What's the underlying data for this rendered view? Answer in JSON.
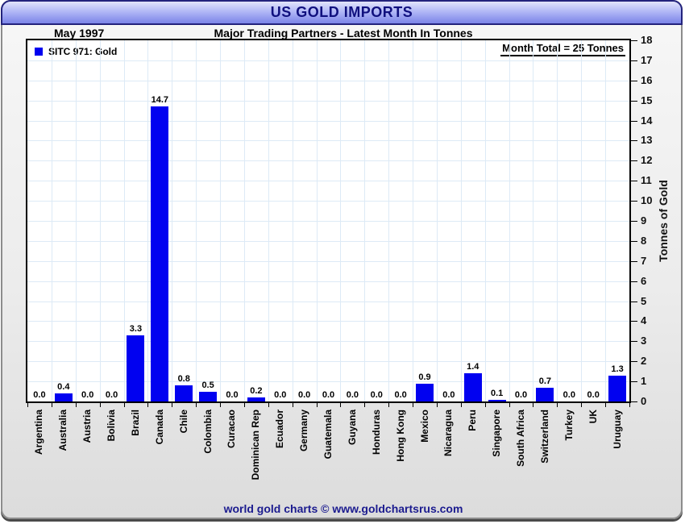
{
  "header": {
    "title": "US GOLD IMPORTS"
  },
  "subheader": {
    "date": "May 1997",
    "subtitle": "Major Trading Partners - Latest Month In Tonnes"
  },
  "legend": {
    "label": "SITC 971: Gold"
  },
  "annotation": {
    "month_total": "Month Total = 25 Tonnes"
  },
  "footer": {
    "credit": "world gold charts © www.goldchartsrus.com"
  },
  "colors": {
    "bar": "#0101f0",
    "grid": "#ddeaf6",
    "banner_top": "#e2e4fc",
    "banner_bottom": "#7b84e8",
    "title_text": "#10107e",
    "footer_text": "#1b1b8f"
  },
  "chart_data": {
    "type": "bar",
    "title": "US GOLD IMPORTS",
    "subtitle": "Major Trading Partners - Latest Month In Tonnes",
    "date_label": "May 1997",
    "legend_entries": [
      "SITC 971: Gold"
    ],
    "annotation": "Month Total = 25 Tonnes",
    "categories": [
      "Argentina",
      "Australia",
      "Austria",
      "Bolivia",
      "Brazil",
      "Canada",
      "Chile",
      "Colombia",
      "Curacao",
      "Dominican Rep",
      "Ecuador",
      "Germany",
      "Guatemala",
      "Guyana",
      "Honduras",
      "Hong Kong",
      "Mexico",
      "Nicaragua",
      "Peru",
      "Singapore",
      "South Africa",
      "Switzerland",
      "Turkey",
      "UK",
      "Uruguay"
    ],
    "values": [
      0.0,
      0.4,
      0.0,
      0.0,
      3.3,
      14.7,
      0.8,
      0.5,
      0.0,
      0.2,
      0.0,
      0.0,
      0.0,
      0.0,
      0.0,
      0.0,
      0.9,
      0.0,
      1.4,
      0.1,
      0.0,
      0.7,
      0.0,
      0.0,
      1.3
    ],
    "value_label_format": "one_decimal",
    "xlabel": "",
    "ylabel": "Tonnes of Gold",
    "ylim": [
      0,
      18
    ],
    "ytick_step": 1,
    "grid": true,
    "legend_position": "top-left",
    "bar_color": "#0101f0"
  }
}
